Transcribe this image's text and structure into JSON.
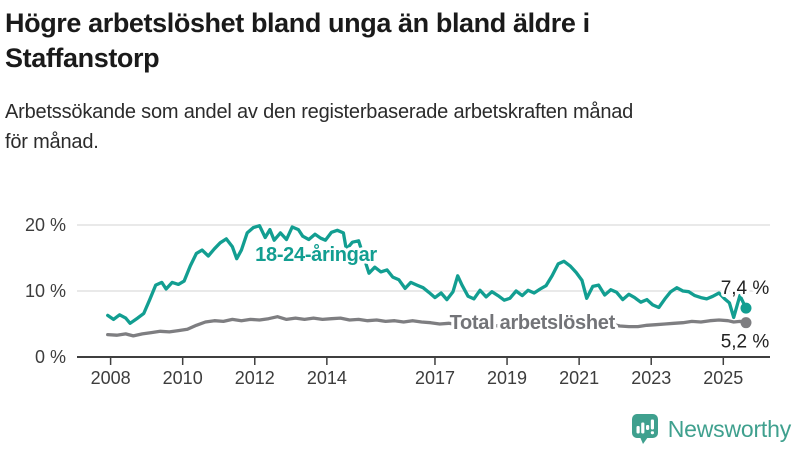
{
  "header": {
    "title_lines": [
      "Högre arbetslöshet bland unga än bland äldre i",
      "Staffanstorp"
    ],
    "subtitle_lines": [
      "Arbetssökande som andel av den registerbaserade arbetskraften månad",
      "för månad."
    ]
  },
  "chart_data": {
    "type": "line",
    "title": "Högre arbetslöshet bland unga än bland äldre i Staffanstorp",
    "subtitle": "Arbetssökande som andel av den registerbaserade arbetskraften månad för månad.",
    "unit": "%",
    "ylim": [
      0,
      20
    ],
    "xlim": [
      2007.9,
      2025.63
    ],
    "grid": "horizontal",
    "legend": "inline-labels",
    "yticks": [
      {
        "value": 0,
        "label": "0 %"
      },
      {
        "value": 10,
        "label": "10 %"
      },
      {
        "value": 20,
        "label": "20 %"
      }
    ],
    "xticks": [
      2008,
      2010,
      2012,
      2014,
      2017,
      2019,
      2021,
      2023,
      2025
    ],
    "series": [
      {
        "id": "total",
        "name": "Total arbetslöshet",
        "color": "#7e7e81",
        "label_color": "#737478",
        "inline_label": {
          "text": "Total arbetslöshet",
          "x": 2019.7,
          "y": 5.3
        },
        "end_label": {
          "text": "5,2 %",
          "position": "below"
        },
        "last_value": 5.2,
        "x": [
          2007.92,
          2008.17,
          2008.42,
          2008.63,
          2008.88,
          2009.13,
          2009.38,
          2009.63,
          2009.88,
          2010.13,
          2010.38,
          2010.63,
          2010.88,
          2011.13,
          2011.38,
          2011.63,
          2011.88,
          2012.13,
          2012.38,
          2012.63,
          2012.88,
          2013.13,
          2013.38,
          2013.63,
          2013.88,
          2014.13,
          2014.38,
          2014.63,
          2014.88,
          2015.13,
          2015.38,
          2015.63,
          2015.88,
          2016.13,
          2016.38,
          2016.63,
          2016.88,
          2017.13,
          2017.38,
          2017.63,
          2017.88,
          2018.13,
          2018.38,
          2018.63,
          2018.88,
          2019.13,
          2019.38,
          2019.63,
          2019.88,
          2020.13,
          2020.38,
          2020.63,
          2020.88,
          2021.13,
          2021.38,
          2021.63,
          2021.88,
          2022.13,
          2022.38,
          2022.63,
          2022.88,
          2023.13,
          2023.38,
          2023.63,
          2023.88,
          2024.13,
          2024.38,
          2024.63,
          2024.88,
          2025.13,
          2025.29,
          2025.46,
          2025.63
        ],
        "values": [
          3.4,
          3.3,
          3.5,
          3.2,
          3.5,
          3.7,
          3.9,
          3.8,
          4.0,
          4.2,
          4.8,
          5.3,
          5.5,
          5.4,
          5.7,
          5.5,
          5.7,
          5.6,
          5.8,
          6.1,
          5.7,
          5.9,
          5.7,
          5.9,
          5.7,
          5.8,
          5.9,
          5.6,
          5.7,
          5.5,
          5.6,
          5.4,
          5.5,
          5.3,
          5.5,
          5.3,
          5.2,
          5.0,
          5.1,
          4.9,
          5.0,
          4.8,
          4.9,
          4.7,
          4.8,
          4.7,
          4.8,
          4.9,
          5.0,
          5.2,
          5.6,
          5.7,
          5.6,
          5.5,
          5.3,
          5.1,
          5.0,
          4.7,
          4.6,
          4.6,
          4.8,
          4.9,
          5.0,
          5.1,
          5.2,
          5.4,
          5.3,
          5.5,
          5.6,
          5.5,
          5.3,
          5.4,
          5.2
        ]
      },
      {
        "id": "youth",
        "name": "18-24-åringar",
        "color": "#129e91",
        "label_color": "#129e91",
        "inline_label": {
          "text": "18-24-åringar",
          "x": 2013.7,
          "y": 15.6
        },
        "end_label": {
          "text": "7,4 %",
          "position": "above"
        },
        "last_value": 7.4,
        "x": [
          2007.92,
          2008.08,
          2008.25,
          2008.42,
          2008.54,
          2008.75,
          2008.92,
          2009.08,
          2009.25,
          2009.42,
          2009.54,
          2009.71,
          2009.88,
          2010.04,
          2010.21,
          2010.38,
          2010.54,
          2010.71,
          2010.88,
          2011.04,
          2011.21,
          2011.38,
          2011.5,
          2011.63,
          2011.79,
          2011.96,
          2012.13,
          2012.29,
          2012.42,
          2012.54,
          2012.71,
          2012.88,
          2013.04,
          2013.21,
          2013.33,
          2013.5,
          2013.67,
          2013.83,
          2013.96,
          2014.13,
          2014.29,
          2014.46,
          2014.54,
          2014.71,
          2014.88,
          2015.04,
          2015.17,
          2015.33,
          2015.5,
          2015.67,
          2015.83,
          2016.0,
          2016.17,
          2016.33,
          2016.5,
          2016.67,
          2016.83,
          2017.0,
          2017.17,
          2017.33,
          2017.5,
          2017.63,
          2017.75,
          2017.92,
          2018.08,
          2018.25,
          2018.42,
          2018.58,
          2018.75,
          2018.92,
          2019.08,
          2019.25,
          2019.42,
          2019.58,
          2019.75,
          2019.92,
          2020.08,
          2020.25,
          2020.42,
          2020.58,
          2020.75,
          2020.92,
          2021.08,
          2021.21,
          2021.38,
          2021.54,
          2021.71,
          2021.88,
          2022.04,
          2022.21,
          2022.38,
          2022.54,
          2022.71,
          2022.88,
          2023.04,
          2023.21,
          2023.38,
          2023.54,
          2023.71,
          2023.88,
          2024.04,
          2024.21,
          2024.38,
          2024.54,
          2024.71,
          2024.88,
          2025.04,
          2025.17,
          2025.29,
          2025.46,
          2025.63
        ],
        "values": [
          6.3,
          5.7,
          6.4,
          5.9,
          5.1,
          5.9,
          6.6,
          8.6,
          10.9,
          11.3,
          10.3,
          11.3,
          11.0,
          11.5,
          13.8,
          15.7,
          16.2,
          15.3,
          16.4,
          17.3,
          17.9,
          16.7,
          14.9,
          16.2,
          18.8,
          19.6,
          19.9,
          18.1,
          19.3,
          17.7,
          18.8,
          17.8,
          19.7,
          19.3,
          18.3,
          17.8,
          18.6,
          18.0,
          17.7,
          18.9,
          19.2,
          18.8,
          16.3,
          17.4,
          17.6,
          14.9,
          12.7,
          13.6,
          12.9,
          13.2,
          12.1,
          11.7,
          10.4,
          11.3,
          10.9,
          10.5,
          9.8,
          9.0,
          9.7,
          8.7,
          9.9,
          12.3,
          10.9,
          9.2,
          8.8,
          10.1,
          9.1,
          9.9,
          9.3,
          8.6,
          8.9,
          10.0,
          9.3,
          10.1,
          9.7,
          10.3,
          10.8,
          12.3,
          14.1,
          14.5,
          13.8,
          12.8,
          11.6,
          8.9,
          10.7,
          10.9,
          9.4,
          10.2,
          9.8,
          8.7,
          9.5,
          9.0,
          8.3,
          8.7,
          7.9,
          7.5,
          8.8,
          9.9,
          10.5,
          10.0,
          9.9,
          9.3,
          9.0,
          8.8,
          9.2,
          9.7,
          8.8,
          8.2,
          6.0,
          9.3,
          7.4
        ]
      }
    ],
    "colors": {
      "accent_teal": "#129e91",
      "series_gray": "#7e7e81",
      "axis_text": "#3d3d3d",
      "grid_line": "#dcdcdc",
      "annotation_text": "#222222"
    }
  },
  "footer": {
    "brand": "Newsworthy",
    "brand_color": "#3fa08e",
    "logo_icon": "bar-chart-speech-bubble-icon"
  }
}
